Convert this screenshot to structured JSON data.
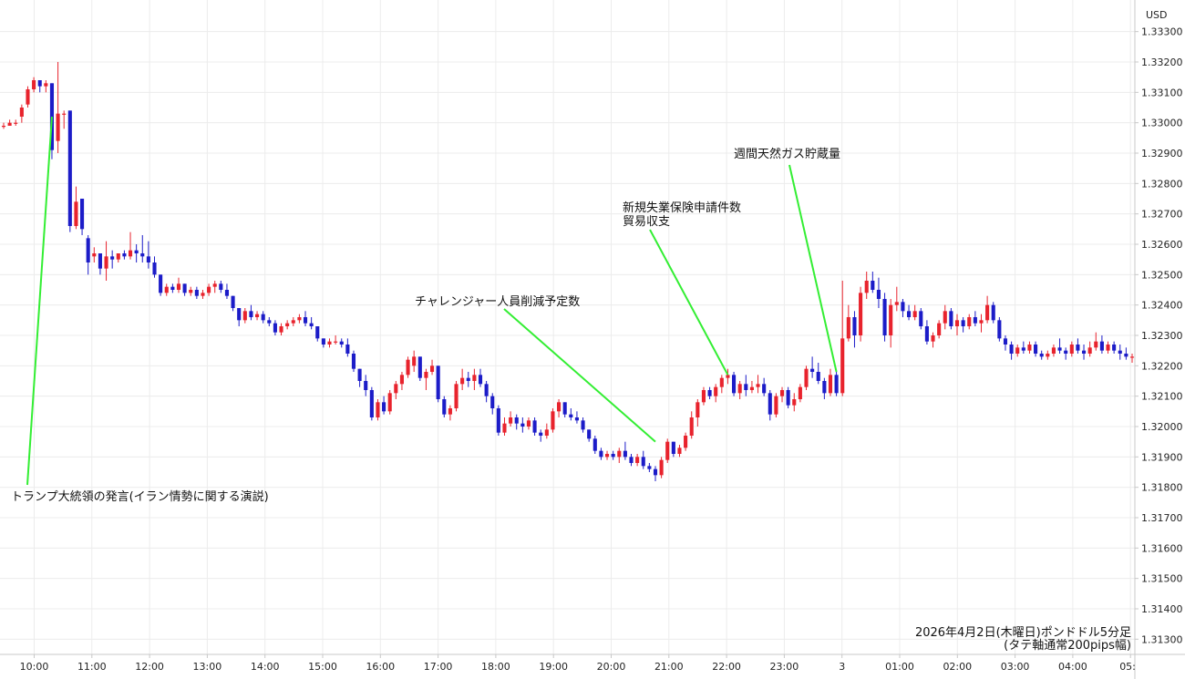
{
  "chart_data": {
    "type": "candlestick",
    "currency_label": "USD",
    "caption_line1": "2026年4月2日(木曜日)ポンドドル5分足",
    "caption_line2": "(タテ軸通常200pips幅)",
    "ylim": [
      1.3125,
      1.3338
    ],
    "y_ticks": [
      "1.33300",
      "1.33200",
      "1.33100",
      "1.33000",
      "1.32900",
      "1.32800",
      "1.32700",
      "1.32600",
      "1.32500",
      "1.32400",
      "1.32300",
      "1.32200",
      "1.32100",
      "1.32000",
      "1.31900",
      "1.31800",
      "1.31700",
      "1.31600",
      "1.31500",
      "1.31400",
      "1.31300"
    ],
    "x_ticks": [
      "10:00",
      "11:00",
      "12:00",
      "13:00",
      "14:00",
      "15:00",
      "16:00",
      "17:00",
      "18:00",
      "19:00",
      "20:00",
      "21:00",
      "22:00",
      "23:00",
      "3",
      "01:00",
      "02:00",
      "03:00",
      "04:00",
      "05:"
    ],
    "grid": true,
    "up_color": "#e8232d",
    "down_color": "#1c1cc8",
    "annotation_color": "#33ee33",
    "candles": [
      [
        1.3299,
        1.33,
        1.3298,
        1.3299
      ],
      [
        1.3299,
        1.3301,
        1.3299,
        1.33
      ],
      [
        1.33,
        1.3301,
        1.3299,
        1.33
      ],
      [
        1.3302,
        1.3306,
        1.33,
        1.3305
      ],
      [
        1.3306,
        1.3312,
        1.3305,
        1.3311
      ],
      [
        1.3311,
        1.3315,
        1.331,
        1.3314
      ],
      [
        1.3314,
        1.3314,
        1.331,
        1.3312
      ],
      [
        1.3312,
        1.3314,
        1.331,
        1.3313
      ],
      [
        1.3313,
        1.3313,
        1.3288,
        1.3291
      ],
      [
        1.3294,
        1.332,
        1.329,
        1.3303
      ],
      [
        1.3303,
        1.3304,
        1.3298,
        1.3303
      ],
      [
        1.3304,
        1.3304,
        1.3264,
        1.3266
      ],
      [
        1.3266,
        1.3279,
        1.3265,
        1.3274
      ],
      [
        1.3275,
        1.3275,
        1.3263,
        1.3265
      ],
      [
        1.3262,
        1.3263,
        1.325,
        1.3254
      ],
      [
        1.3256,
        1.3259,
        1.3254,
        1.3257
      ],
      [
        1.3257,
        1.3257,
        1.325,
        1.3252
      ],
      [
        1.3252,
        1.3261,
        1.3248,
        1.3256
      ],
      [
        1.3256,
        1.3258,
        1.3252,
        1.3255
      ],
      [
        1.3255,
        1.3257,
        1.3254,
        1.3257
      ],
      [
        1.3257,
        1.3258,
        1.3255,
        1.3256
      ],
      [
        1.3256,
        1.3264,
        1.3255,
        1.3258
      ],
      [
        1.3258,
        1.326,
        1.3254,
        1.3257
      ],
      [
        1.3257,
        1.3263,
        1.3254,
        1.3256
      ],
      [
        1.3256,
        1.3261,
        1.3252,
        1.3254
      ],
      [
        1.3254,
        1.3256,
        1.3249,
        1.325
      ],
      [
        1.325,
        1.325,
        1.3243,
        1.3244
      ],
      [
        1.3244,
        1.3247,
        1.3243,
        1.3246
      ],
      [
        1.3246,
        1.3247,
        1.3244,
        1.3245
      ],
      [
        1.3245,
        1.3249,
        1.3244,
        1.3247
      ],
      [
        1.3247,
        1.3247,
        1.3243,
        1.3244
      ],
      [
        1.3244,
        1.3246,
        1.3243,
        1.3245
      ],
      [
        1.3245,
        1.3246,
        1.3242,
        1.3243
      ],
      [
        1.3243,
        1.3245,
        1.3242,
        1.3244
      ],
      [
        1.3244,
        1.3247,
        1.3243,
        1.3246
      ],
      [
        1.3246,
        1.3248,
        1.3244,
        1.3247
      ],
      [
        1.3247,
        1.3248,
        1.3244,
        1.3245
      ],
      [
        1.3245,
        1.3247,
        1.3242,
        1.3243
      ],
      [
        1.3243,
        1.3243,
        1.3238,
        1.3239
      ],
      [
        1.3239,
        1.3239,
        1.3233,
        1.3235
      ],
      [
        1.3235,
        1.3239,
        1.3234,
        1.3238
      ],
      [
        1.3238,
        1.324,
        1.3235,
        1.3236
      ],
      [
        1.3236,
        1.3238,
        1.3235,
        1.3237
      ],
      [
        1.3237,
        1.3238,
        1.3234,
        1.3235
      ],
      [
        1.3235,
        1.3236,
        1.3233,
        1.3234
      ],
      [
        1.3234,
        1.3235,
        1.323,
        1.3231
      ],
      [
        1.3231,
        1.3234,
        1.323,
        1.3233
      ],
      [
        1.3233,
        1.3235,
        1.3232,
        1.3234
      ],
      [
        1.3234,
        1.3236,
        1.3233,
        1.3235
      ],
      [
        1.3235,
        1.3237,
        1.3234,
        1.3236
      ],
      [
        1.3236,
        1.3238,
        1.3233,
        1.3234
      ],
      [
        1.3234,
        1.3236,
        1.3232,
        1.3233
      ],
      [
        1.3233,
        1.3233,
        1.3228,
        1.3229
      ],
      [
        1.3229,
        1.3229,
        1.3226,
        1.3227
      ],
      [
        1.3227,
        1.3229,
        1.3226,
        1.3228
      ],
      [
        1.3228,
        1.323,
        1.3227,
        1.3228
      ],
      [
        1.3228,
        1.3229,
        1.3226,
        1.3227
      ],
      [
        1.3227,
        1.3229,
        1.3223,
        1.3224
      ],
      [
        1.3224,
        1.3225,
        1.3218,
        1.3219
      ],
      [
        1.3219,
        1.3219,
        1.3213,
        1.3215
      ],
      [
        1.3215,
        1.3217,
        1.321,
        1.3212
      ],
      [
        1.3212,
        1.3213,
        1.3202,
        1.3203
      ],
      [
        1.3203,
        1.3209,
        1.3202,
        1.3208
      ],
      [
        1.3208,
        1.321,
        1.3204,
        1.3205
      ],
      [
        1.3205,
        1.3212,
        1.3204,
        1.3211
      ],
      [
        1.3211,
        1.3215,
        1.3209,
        1.3214
      ],
      [
        1.3214,
        1.3218,
        1.3212,
        1.3217
      ],
      [
        1.3217,
        1.3223,
        1.3216,
        1.3222
      ],
      [
        1.322,
        1.3225,
        1.3218,
        1.3223
      ],
      [
        1.3223,
        1.3223,
        1.3215,
        1.3216
      ],
      [
        1.3216,
        1.3219,
        1.3212,
        1.3218
      ],
      [
        1.3218,
        1.3222,
        1.3217,
        1.322
      ],
      [
        1.322,
        1.322,
        1.3208,
        1.3209
      ],
      [
        1.3209,
        1.321,
        1.3203,
        1.3204
      ],
      [
        1.3204,
        1.3207,
        1.3202,
        1.3206
      ],
      [
        1.3206,
        1.3215,
        1.3205,
        1.3214
      ],
      [
        1.3214,
        1.3219,
        1.3212,
        1.3216
      ],
      [
        1.3216,
        1.3218,
        1.3213,
        1.3215
      ],
      [
        1.3215,
        1.3219,
        1.3212,
        1.3217
      ],
      [
        1.3217,
        1.3219,
        1.3213,
        1.3214
      ],
      [
        1.3214,
        1.3215,
        1.3208,
        1.321
      ],
      [
        1.321,
        1.3211,
        1.3204,
        1.3206
      ],
      [
        1.3206,
        1.3207,
        1.3197,
        1.3198
      ],
      [
        1.3198,
        1.3203,
        1.3197,
        1.3201
      ],
      [
        1.3201,
        1.3205,
        1.32,
        1.3203
      ],
      [
        1.3203,
        1.3204,
        1.3199,
        1.3201
      ],
      [
        1.3201,
        1.3203,
        1.3198,
        1.32
      ],
      [
        1.32,
        1.3203,
        1.3199,
        1.3202
      ],
      [
        1.3202,
        1.3203,
        1.3197,
        1.3198
      ],
      [
        1.3198,
        1.3199,
        1.3195,
        1.3197
      ],
      [
        1.3197,
        1.3201,
        1.3196,
        1.3199
      ],
      [
        1.3199,
        1.3206,
        1.3198,
        1.3205
      ],
      [
        1.3205,
        1.3209,
        1.3203,
        1.3208
      ],
      [
        1.3208,
        1.3208,
        1.3203,
        1.3204
      ],
      [
        1.3204,
        1.3206,
        1.3202,
        1.3203
      ],
      [
        1.3203,
        1.3205,
        1.3201,
        1.3202
      ],
      [
        1.3202,
        1.3203,
        1.3198,
        1.3199
      ],
      [
        1.3199,
        1.3199,
        1.3195,
        1.3196
      ],
      [
        1.3196,
        1.3197,
        1.3191,
        1.3192
      ],
      [
        1.3192,
        1.3193,
        1.3189,
        1.319
      ],
      [
        1.319,
        1.3192,
        1.3189,
        1.3191
      ],
      [
        1.3191,
        1.3192,
        1.3189,
        1.319
      ],
      [
        1.319,
        1.3193,
        1.3188,
        1.3192
      ],
      [
        1.3192,
        1.3195,
        1.3189,
        1.319
      ],
      [
        1.319,
        1.3191,
        1.3187,
        1.3188
      ],
      [
        1.3188,
        1.3191,
        1.3187,
        1.319
      ],
      [
        1.319,
        1.3192,
        1.3186,
        1.3187
      ],
      [
        1.3187,
        1.3188,
        1.3185,
        1.3186
      ],
      [
        1.3186,
        1.3187,
        1.3182,
        1.3184
      ],
      [
        1.3184,
        1.319,
        1.3183,
        1.3189
      ],
      [
        1.3189,
        1.3196,
        1.3188,
        1.3195
      ],
      [
        1.3195,
        1.3195,
        1.319,
        1.3191
      ],
      [
        1.3191,
        1.3194,
        1.319,
        1.3193
      ],
      [
        1.3193,
        1.3198,
        1.3192,
        1.3197
      ],
      [
        1.3197,
        1.3205,
        1.3196,
        1.3203
      ],
      [
        1.3203,
        1.3209,
        1.32,
        1.3208
      ],
      [
        1.3208,
        1.3213,
        1.3207,
        1.3212
      ],
      [
        1.3212,
        1.3213,
        1.3209,
        1.321
      ],
      [
        1.321,
        1.3214,
        1.3208,
        1.3213
      ],
      [
        1.3213,
        1.3217,
        1.3211,
        1.3216
      ],
      [
        1.3216,
        1.3219,
        1.3214,
        1.3217
      ],
      [
        1.3217,
        1.3218,
        1.321,
        1.3211
      ],
      [
        1.3211,
        1.3215,
        1.3209,
        1.3214
      ],
      [
        1.3214,
        1.3217,
        1.321,
        1.3212
      ],
      [
        1.3212,
        1.3215,
        1.3211,
        1.3213
      ],
      [
        1.3213,
        1.3217,
        1.3211,
        1.3214
      ],
      [
        1.3214,
        1.3216,
        1.321,
        1.3211
      ],
      [
        1.3211,
        1.3212,
        1.3202,
        1.3204
      ],
      [
        1.3204,
        1.3211,
        1.3203,
        1.321
      ],
      [
        1.321,
        1.3213,
        1.3208,
        1.3212
      ],
      [
        1.3212,
        1.3213,
        1.3206,
        1.3207
      ],
      [
        1.3207,
        1.3211,
        1.3205,
        1.3209
      ],
      [
        1.3209,
        1.3214,
        1.3208,
        1.3213
      ],
      [
        1.3213,
        1.322,
        1.3212,
        1.3219
      ],
      [
        1.3219,
        1.3223,
        1.3216,
        1.3218
      ],
      [
        1.3218,
        1.3221,
        1.3214,
        1.3215
      ],
      [
        1.3215,
        1.3216,
        1.3209,
        1.3211
      ],
      [
        1.3211,
        1.3219,
        1.321,
        1.3217
      ],
      [
        1.3217,
        1.3218,
        1.321,
        1.3211
      ],
      [
        1.3211,
        1.3248,
        1.321,
        1.3229
      ],
      [
        1.3229,
        1.324,
        1.3228,
        1.3236
      ],
      [
        1.3236,
        1.3238,
        1.3226,
        1.323
      ],
      [
        1.323,
        1.3246,
        1.3228,
        1.3244
      ],
      [
        1.3244,
        1.3251,
        1.3242,
        1.3248
      ],
      [
        1.3248,
        1.3251,
        1.3244,
        1.3245
      ],
      [
        1.3245,
        1.3249,
        1.3239,
        1.3242
      ],
      [
        1.3242,
        1.3244,
        1.3228,
        1.323
      ],
      [
        1.323,
        1.3242,
        1.3226,
        1.324
      ],
      [
        1.324,
        1.3246,
        1.3238,
        1.3241
      ],
      [
        1.3241,
        1.3242,
        1.3236,
        1.3238
      ],
      [
        1.3238,
        1.324,
        1.3235,
        1.3236
      ],
      [
        1.3236,
        1.324,
        1.3235,
        1.3238
      ],
      [
        1.3238,
        1.3239,
        1.3232,
        1.3233
      ],
      [
        1.3233,
        1.3235,
        1.3227,
        1.3228
      ],
      [
        1.3228,
        1.3231,
        1.3226,
        1.323
      ],
      [
        1.323,
        1.3235,
        1.3229,
        1.3234
      ],
      [
        1.3234,
        1.324,
        1.3232,
        1.3238
      ],
      [
        1.3238,
        1.3239,
        1.3232,
        1.3233
      ],
      [
        1.3233,
        1.3237,
        1.323,
        1.3235
      ],
      [
        1.3235,
        1.3236,
        1.3231,
        1.3233
      ],
      [
        1.3233,
        1.3237,
        1.3232,
        1.3236
      ],
      [
        1.3236,
        1.3238,
        1.3233,
        1.3234
      ],
      [
        1.3234,
        1.3237,
        1.3231,
        1.3235
      ],
      [
        1.3235,
        1.3243,
        1.3234,
        1.324
      ],
      [
        1.324,
        1.3241,
        1.3234,
        1.3235
      ],
      [
        1.3235,
        1.3236,
        1.3228,
        1.3229
      ],
      [
        1.3229,
        1.323,
        1.3225,
        1.3227
      ],
      [
        1.3227,
        1.3228,
        1.3222,
        1.3224
      ],
      [
        1.3224,
        1.3227,
        1.3223,
        1.3226
      ],
      [
        1.3226,
        1.3228,
        1.3224,
        1.3225
      ],
      [
        1.3225,
        1.3228,
        1.3224,
        1.3227
      ],
      [
        1.3227,
        1.3228,
        1.3223,
        1.3224
      ],
      [
        1.3224,
        1.3225,
        1.3222,
        1.3223
      ],
      [
        1.3223,
        1.3225,
        1.3222,
        1.3224
      ],
      [
        1.3224,
        1.3227,
        1.3223,
        1.3226
      ],
      [
        1.3226,
        1.3229,
        1.3224,
        1.3225
      ],
      [
        1.3225,
        1.3226,
        1.3222,
        1.3224
      ],
      [
        1.3224,
        1.3228,
        1.3223,
        1.3227
      ],
      [
        1.3227,
        1.3229,
        1.3224,
        1.3225
      ],
      [
        1.3225,
        1.3227,
        1.3222,
        1.3224
      ],
      [
        1.3224,
        1.3228,
        1.3223,
        1.3226
      ],
      [
        1.3226,
        1.3231,
        1.3225,
        1.3228
      ],
      [
        1.3228,
        1.323,
        1.3224,
        1.3225
      ],
      [
        1.3225,
        1.3228,
        1.3224,
        1.3227
      ],
      [
        1.3227,
        1.3228,
        1.3224,
        1.3225
      ],
      [
        1.3225,
        1.3227,
        1.3222,
        1.3224
      ],
      [
        1.3224,
        1.3226,
        1.3222,
        1.3223
      ],
      [
        1.3223,
        1.3224,
        1.3221,
        1.3223
      ]
    ],
    "annotations": [
      {
        "lines": [
          "トランプ大統領の発言(イラン情勢に関する演説)"
        ],
        "candle_index": 8,
        "price": 1.3302
      },
      {
        "lines": [
          "チャレンジャー人員削減予定数"
        ],
        "candle_index": 108,
        "price": 1.3195
      },
      {
        "lines": [
          "新規失業保険申請件数",
          "貿易収支"
        ],
        "candle_index": 120,
        "price": 1.3217
      },
      {
        "lines": [
          "週間天然ガス貯蔵量"
        ],
        "candle_index": 138,
        "price": 1.3218
      }
    ]
  }
}
